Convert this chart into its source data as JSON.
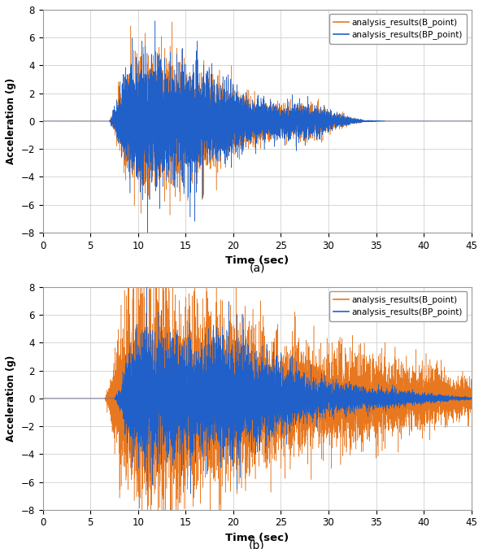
{
  "title_a": "(a)",
  "title_b": "(b)",
  "xlabel": "Time (sec)",
  "ylabel": "Acceleration (g)",
  "xlim": [
    0,
    45
  ],
  "ylim": [
    -8,
    8
  ],
  "xticks": [
    0,
    5,
    10,
    15,
    20,
    25,
    30,
    35,
    40,
    45
  ],
  "yticks": [
    -8,
    -6,
    -4,
    -2,
    0,
    2,
    4,
    6,
    8
  ],
  "color_B": "#E87820",
  "color_BP": "#2060C8",
  "legend_B": "analysis_results(B_point)",
  "legend_BP": "analysis_results(BP_point)",
  "linewidth": 0.35,
  "dt": 0.005,
  "duration": 45.0,
  "background_color": "#FFFFFF",
  "grid_color": "#D0D0D0",
  "border_color": "#999999"
}
